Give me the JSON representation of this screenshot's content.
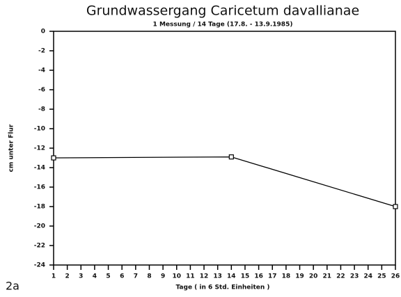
{
  "chart_data": {
    "type": "line",
    "title": "Grundwassergang Caricetum davallianae",
    "subtitle": "1 Messung / 14 Tage (17.8. - 13.9.1985)",
    "xlabel": "Tage ( in 6 Std. Einheiten )",
    "ylabel": "cm unter Flur",
    "annotation": "2a",
    "x": [
      1,
      14,
      26
    ],
    "values": [
      -13,
      -12.9,
      -18
    ],
    "color": "#000000",
    "xlim": [
      1,
      26
    ],
    "xticks": [
      1,
      2,
      3,
      4,
      5,
      6,
      7,
      8,
      9,
      10,
      11,
      12,
      13,
      14,
      15,
      16,
      17,
      18,
      19,
      20,
      21,
      22,
      23,
      24,
      25,
      26
    ],
    "ylim": [
      -24,
      0
    ],
    "yticks": [
      0,
      -2,
      -4,
      -6,
      -8,
      -10,
      -12,
      -14,
      -16,
      -18,
      -20,
      -22,
      -24
    ],
    "grid": false
  }
}
